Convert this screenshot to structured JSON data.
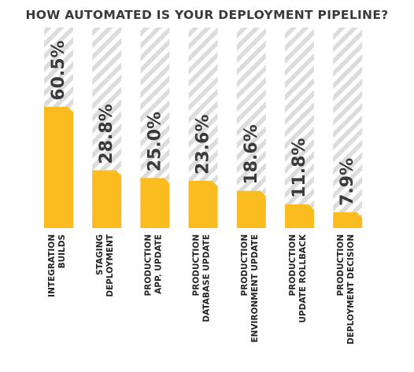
{
  "chart_data": {
    "type": "bar",
    "title": "HOW AUTOMATED IS YOUR DEPLOYMENT PIPELINE?",
    "xlabel": "",
    "ylabel": "",
    "ylim": [
      0,
      100
    ],
    "grid": false,
    "legend": "none",
    "categories": [
      [
        "INTEGRATION",
        "BUILDS"
      ],
      [
        "STAGING",
        "DEPLOYMENT"
      ],
      [
        "PRODUCTION",
        "APP. UPDATE"
      ],
      [
        "PRODUCTION",
        "DATABASE UPDATE"
      ],
      [
        "PRODUCTION",
        "ENVIRONMENT  UPDATE"
      ],
      [
        "PRODUCTION",
        "UPDATE ROLLBACK"
      ],
      [
        "PRODUCTION",
        "DEPLOYMENT DECISION"
      ]
    ],
    "values": [
      60.5,
      28.8,
      25.0,
      23.6,
      18.6,
      11.8,
      7.9
    ],
    "value_labels": [
      "60.5%",
      "28.8%",
      "25.0%",
      "23.6%",
      "18.6%",
      "11.8%",
      "7.9%"
    ]
  },
  "colors": {
    "bar": "#fbbc20",
    "hatch_stripe": "#dcdcdc",
    "hatch_bg": "#ffffff",
    "text": "#3a3a3a",
    "category_text": "#222222"
  }
}
